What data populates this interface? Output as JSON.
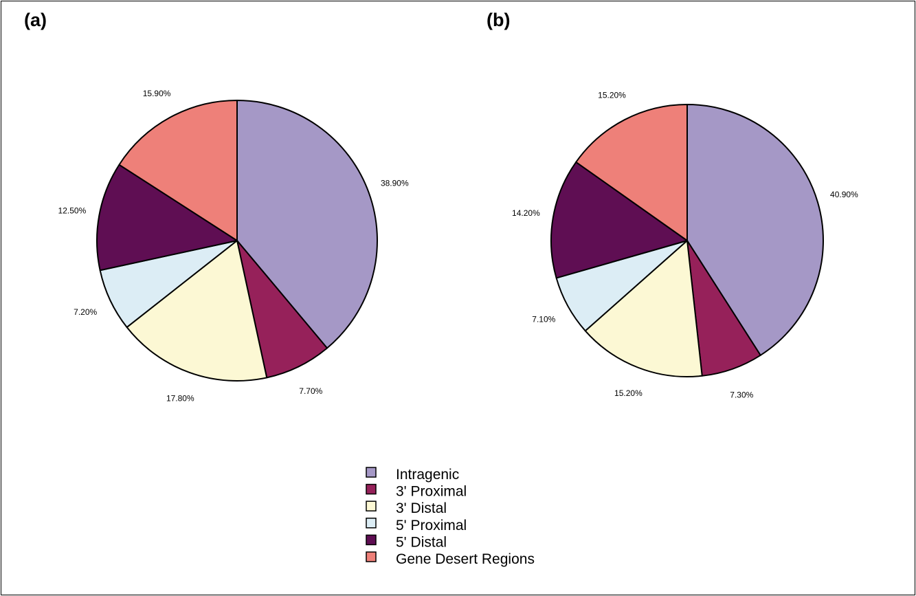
{
  "legend": {
    "placement": "bottom-center",
    "entries": [
      {
        "label": "Intragenic",
        "color": "#a598c6"
      },
      {
        "label": "3' Proximal",
        "color": "#96215a"
      },
      {
        "label": "3' Distal",
        "color": "#fcf8d4"
      },
      {
        "label": "5' Proximal",
        "color": "#dcedf5"
      },
      {
        "label": "5' Distal",
        "color": "#5f0e53"
      },
      {
        "label": "Gene Desert Regions",
        "color": "#ee8079"
      }
    ]
  },
  "chart_data": [
    {
      "type": "pie",
      "panel_label": "(a)",
      "direction": "clockwise",
      "start": "12 o'clock",
      "categories": [
        "Intragenic",
        "3' Proximal",
        "3' Distal",
        "5' Proximal",
        "5' Distal",
        "Gene Desert Regions"
      ],
      "values": [
        38.9,
        7.7,
        17.8,
        7.2,
        12.5,
        15.9
      ],
      "labels": [
        "38.90%",
        "7.70%",
        "17.80%",
        "7.20%",
        "12.50%",
        "15.90%"
      ]
    },
    {
      "type": "pie",
      "panel_label": "(b)",
      "direction": "clockwise",
      "start": "12 o'clock",
      "categories": [
        "Intragenic",
        "3' Proximal",
        "3' Distal",
        "5' Proximal",
        "5' Distal",
        "Gene Desert Regions"
      ],
      "values": [
        40.9,
        7.3,
        15.2,
        7.1,
        14.2,
        15.2
      ],
      "labels": [
        "40.90%",
        "7.30%",
        "15.20%",
        "7.10%",
        "14.20%",
        "15.20%"
      ]
    }
  ]
}
